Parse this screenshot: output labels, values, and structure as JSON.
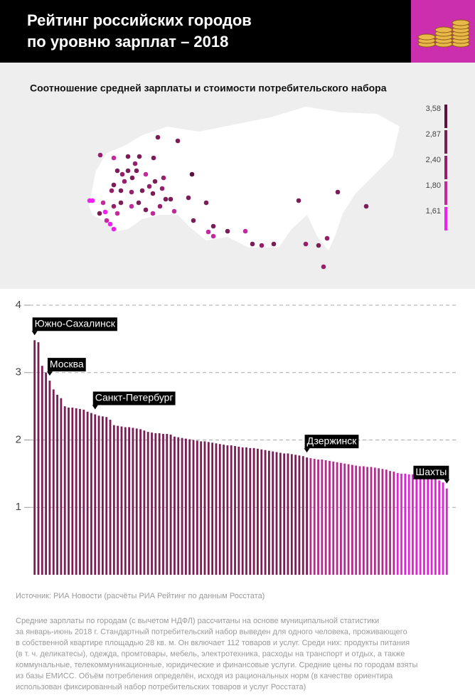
{
  "header": {
    "title": [
      "Рейтинг российских городов",
      "по уровню зарплат – 2018"
    ]
  },
  "chart_data": [
    {
      "type": "map",
      "title": "Соотношение средней зарплаты и стоимости потребительского набора",
      "legend": {
        "ticks": [
          {
            "value": 3.58,
            "label": "3,58"
          },
          {
            "value": 2.87,
            "label": "2,87"
          },
          {
            "value": 2.4,
            "label": "2,40"
          },
          {
            "value": 1.8,
            "label": "1,80"
          },
          {
            "value": 1.61,
            "label": "1,61"
          }
        ],
        "colors": [
          "#5e0f3e",
          "#7b1d56",
          "#951f6a",
          "#c22a9b",
          "#f020f0"
        ]
      }
    },
    {
      "type": "bar",
      "categories": [
        "Южно-Сахалинск",
        null,
        null,
        null,
        "Москва",
        null,
        null,
        null,
        null,
        null,
        null,
        null,
        null,
        null,
        null,
        null,
        "Санкт-Петербург",
        null,
        null,
        null,
        null,
        null,
        null,
        null,
        null,
        null,
        null,
        null,
        null,
        null,
        null,
        null,
        null,
        null,
        null,
        null,
        null,
        null,
        null,
        null,
        null,
        null,
        null,
        null,
        null,
        null,
        null,
        null,
        null,
        null,
        null,
        null,
        null,
        null,
        null,
        null,
        null,
        null,
        null,
        null,
        null,
        null,
        null,
        null,
        null,
        null,
        null,
        null,
        null,
        null,
        null,
        null,
        "Дзержинск",
        null,
        null,
        null,
        null,
        null,
        null,
        null,
        null,
        null,
        null,
        null,
        null,
        null,
        null,
        null,
        null,
        null,
        null,
        null,
        null,
        null,
        null,
        null,
        null,
        null,
        null,
        null,
        null,
        null,
        null,
        null,
        null,
        null,
        null,
        null,
        null,
        "Шахты"
      ],
      "values": [
        3.48,
        3.45,
        3.1,
        3.0,
        2.88,
        2.75,
        2.67,
        2.62,
        2.5,
        2.48,
        2.48,
        2.47,
        2.46,
        2.45,
        2.42,
        2.4,
        2.38,
        2.36,
        2.35,
        2.34,
        2.3,
        2.22,
        2.21,
        2.2,
        2.19,
        2.19,
        2.18,
        2.17,
        2.16,
        2.14,
        2.12,
        2.11,
        2.1,
        2.1,
        2.09,
        2.09,
        2.08,
        2.05,
        2.04,
        2.03,
        2.02,
        2.01,
        2.0,
        1.99,
        1.98,
        1.98,
        1.97,
        1.96,
        1.95,
        1.94,
        1.93,
        1.92,
        1.92,
        1.91,
        1.9,
        1.89,
        1.89,
        1.88,
        1.88,
        1.87,
        1.86,
        1.85,
        1.84,
        1.83,
        1.82,
        1.81,
        1.8,
        1.8,
        1.79,
        1.78,
        1.77,
        1.76,
        1.74,
        1.73,
        1.72,
        1.71,
        1.71,
        1.7,
        1.69,
        1.68,
        1.67,
        1.66,
        1.65,
        1.64,
        1.63,
        1.62,
        1.61,
        1.61,
        1.6,
        1.6,
        1.59,
        1.58,
        1.57,
        1.56,
        1.54,
        1.53,
        1.51,
        1.5,
        1.5,
        1.49,
        1.49,
        1.48,
        1.47,
        1.47,
        1.46,
        1.45,
        1.44,
        1.4,
        1.37,
        1.28
      ],
      "colors": [
        "#7b1d56",
        "#7b1d56",
        "#7b1d56",
        "#7b1d56",
        "#7b1d56",
        "#7b1d56",
        "#7b1d56",
        "#7b1d56",
        "#7b1d56",
        "#7b1d56",
        "#7b1d56",
        "#7b1d56",
        "#7b1d56",
        "#7b1d56",
        "#7b1d56",
        "#7b1d56",
        "#7b1d56",
        "#7b1d56",
        "#7b1d56",
        "#7b1d56",
        "#7b1d56",
        "#7b1d56",
        "#7b1d56",
        "#7b1d56",
        "#7b1d56",
        "#7b1d56",
        "#7b1d56",
        "#7b1d56",
        "#7b1d56",
        "#7b1d56",
        "#7b1d56",
        "#7b1d56",
        "#7b1d56",
        "#7b1d56",
        "#7b1d56",
        "#7b1d56",
        "#7b1d56",
        "#7b1d56",
        "#7b1d56",
        "#7b1d56",
        "#7b1d56",
        "#7b1d56",
        "#7b1d56",
        "#7b1d56",
        "#7b1d56",
        "#7b1d56",
        "#7b1d56",
        "#7b1d56",
        "#7b1d56",
        "#7b1d56",
        "#7b1d56",
        "#7b1d56",
        "#7b1d56",
        "#7b1d56",
        "#7b1d56",
        "#7b1d56",
        "#7b1d56",
        "#7b1d56",
        "#7b1d56",
        "#7b1d56",
        "#7b1d56",
        "#7b1d56",
        "#7b1d56",
        "#7b1d56",
        "#7b1d56",
        "#7b1d56",
        "#7b1d56",
        "#7b1d56",
        "#7b1d56",
        "#7b1d56",
        "#7b1d56",
        "#7b1d56",
        "#7b1d56",
        "#b52a8e",
        "#b52a8e",
        "#b52a8e",
        "#b52a8e",
        "#b52a8e",
        "#b52a8e",
        "#b52a8e",
        "#b52a8e",
        "#b52a8e",
        "#b52a8e",
        "#b52a8e",
        "#b52a8e",
        "#b52a8e",
        "#b52a8e",
        "#b52a8e",
        "#b52a8e",
        "#b52a8e",
        "#b52a8e",
        "#b52a8e",
        "#b52a8e",
        "#b52a8e",
        "#b52a8e",
        "#b52a8e",
        "#df24d6",
        "#df24d6",
        "#df24d6",
        "#df24d6",
        "#df24d6",
        "#df24d6",
        "#df24d6",
        "#df24d6",
        "#df24d6",
        "#df24d6",
        "#df24d6",
        "#df24d6",
        "#df24d6",
        "#df24d6"
      ],
      "ylim": [
        0,
        4
      ],
      "yticks": [
        1,
        2,
        3,
        4
      ],
      "grid": true
    }
  ],
  "footer": {
    "source": "Источник: РИА Новости (расчёты РИА Рейтинг по данным Росстата)",
    "note": [
      "Средние зарплаты по городам (с вычетом НДФЛ) рассчитаны на основе муниципальной статистики",
      "за январь-июнь 2018 г. Стандартный потребительский набор выведен для одного человека, проживающего",
      "в собственной квартире площадью 28 кв. м. Он включает 112 товаров и услуг. Среди них: продукты питания",
      "(в т. ч. деликатесы), одежда, промтовары, мебель, электротехника, расходы на транспорт и отдых, а также",
      "коммунальные, телекоммуникационные, юридические и финансовые услуги. Средние цены по городам взяты",
      "из базы ЕМИСС. Объём потребления определён, исходя из рациональных норм (в качестве ориентира",
      "использован фиксированный набор потребительских товаров и услуг Росстата)"
    ]
  }
}
